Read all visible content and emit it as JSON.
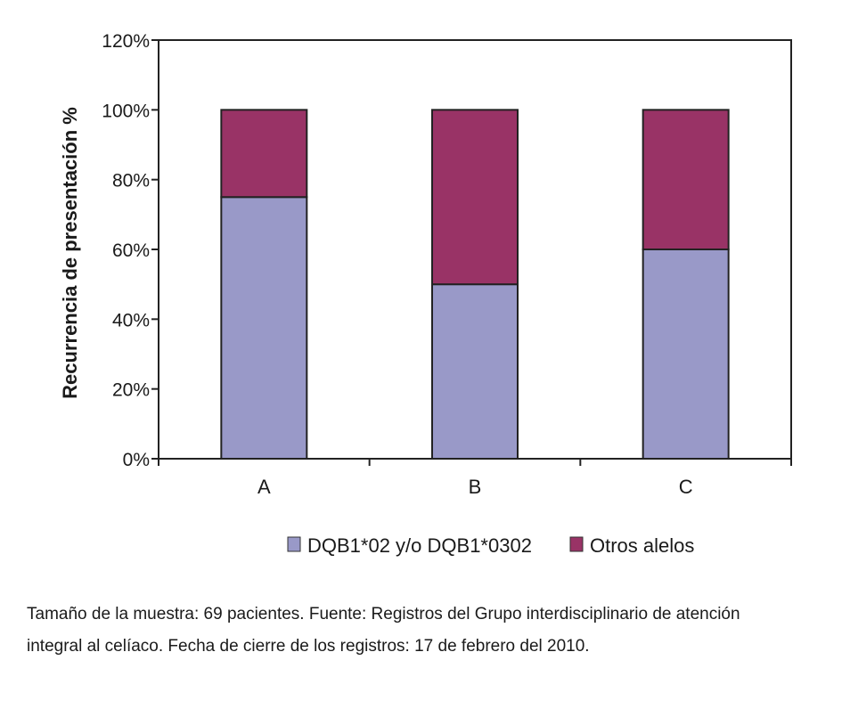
{
  "chart_data": {
    "type": "bar",
    "stacked": true,
    "categories": [
      "A",
      "B",
      "C"
    ],
    "series": [
      {
        "name": "DQB1*02 y/o DQB1*0302",
        "color": "#9999c8",
        "values": [
          75,
          50,
          60
        ]
      },
      {
        "name": "Otros alelos",
        "color": "#993366",
        "values": [
          25,
          50,
          40
        ]
      }
    ],
    "ylabel": "Recurrencia de presentación %",
    "xlabel": "",
    "ylim": [
      0,
      120
    ],
    "yticks": [
      "0%",
      "20%",
      "40%",
      "60%",
      "80%",
      "100%",
      "120%"
    ],
    "ytick_values": [
      0,
      20,
      40,
      60,
      80,
      100,
      120
    ],
    "grid": false,
    "legend_position": "bottom"
  },
  "caption": {
    "line1": "Tamaño de la muestra: 69 pacientes. Fuente: Registros del Grupo interdisciplinario de atención",
    "line2": "integral al celíaco. Fecha de cierre de los registros: 17 de febrero del 2010."
  }
}
